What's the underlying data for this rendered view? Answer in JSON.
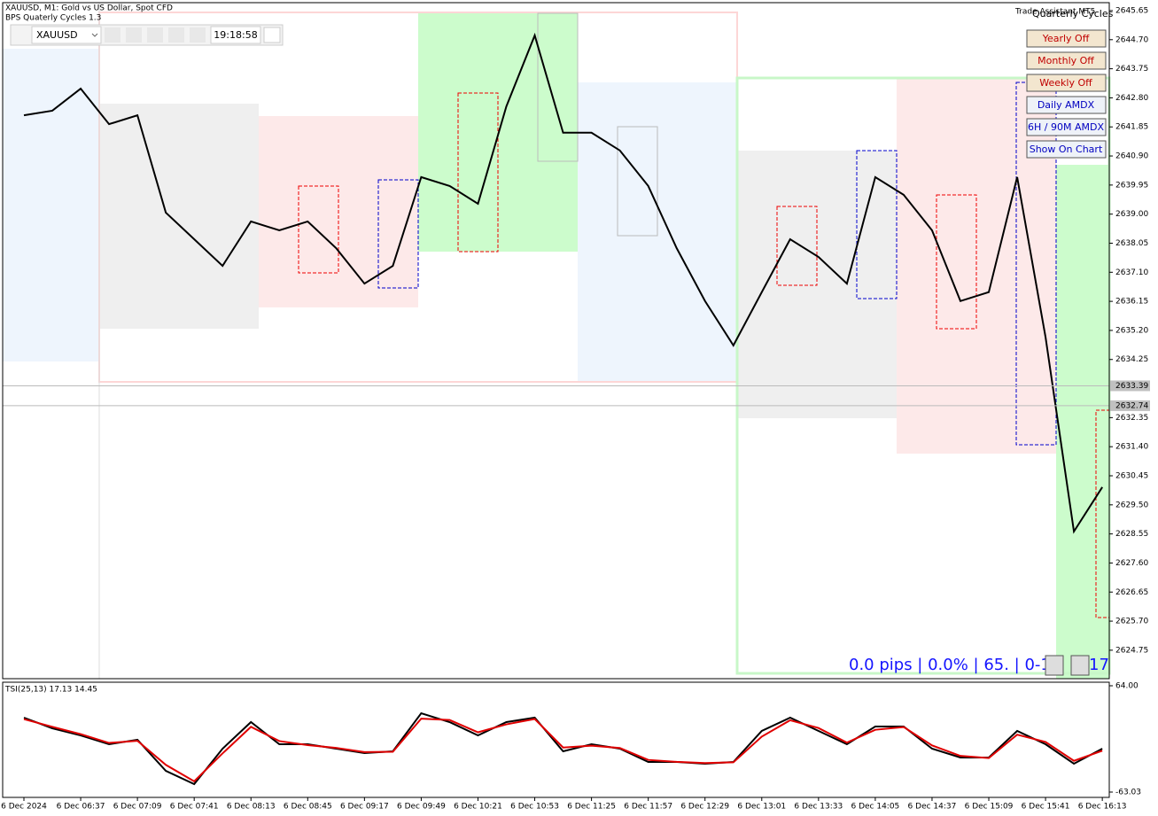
{
  "header": {
    "symbol_line": "XAUUSD, M1:  Gold vs US Dollar, Spot CFD",
    "indicator": "BPS Quaterly Cycles 1.3"
  },
  "toolbar": {
    "symbol": "XAUUSD",
    "time": "19:18:58"
  },
  "panel": {
    "overlay": "Trade Assistant MT5",
    "title": "Quarterly Cycles",
    "buttons": [
      "Yearly Off",
      "Monthly Off",
      "Weekly Off",
      "Daily AMDX",
      "6H / 90M AMDX",
      "Show On Chart"
    ]
  },
  "status": {
    "text": "0.0 pips | 0.0% | 65. | 0-1",
    "tail": "17"
  },
  "sub_label": "TSI(25,13) 17.13 14.45",
  "chart_data": [
    {
      "type": "line",
      "color": "#000000",
      "categories": [
        "6 Dec 2024",
        null,
        "6 Dec 06:37",
        null,
        "6 Dec 07:09",
        null,
        "6 Dec 07:41",
        null,
        "6 Dec 08:13",
        null,
        "6 Dec 08:45",
        null,
        "6 Dec 09:17",
        null,
        "6 Dec 09:49",
        null,
        "6 Dec 10:21",
        null,
        "6 Dec 10:53",
        null,
        "6 Dec 11:25",
        null,
        "6 Dec 11:57",
        null,
        "6 Dec 12:29",
        null,
        "6 Dec 13:01",
        null,
        "6 Dec 13:33",
        null,
        "6 Dec 14:05",
        null,
        "6 Dec 14:37",
        null,
        "6 Dec 15:09",
        null,
        "6 Dec 15:41",
        null,
        "6 Dec 16:13"
      ],
      "values": [
        2642.23,
        2642.38,
        2643.1,
        2641.94,
        2642.23,
        2639.05,
        2638.18,
        2637.31,
        2638.76,
        2638.47,
        2638.76,
        2637.89,
        2636.73,
        2637.31,
        2640.21,
        2639.92,
        2639.34,
        2642.52,
        2644.84,
        2641.66,
        2641.66,
        2641.08,
        2639.92,
        2637.89,
        2636.16,
        2634.71,
        2636.45,
        2638.18,
        2637.6,
        2636.73,
        2640.21,
        2639.63,
        2638.47,
        2636.16,
        2636.45,
        2640.21,
        2634.98,
        2628.63,
        2630.08
      ],
      "price_lines": [
        2633.39,
        2632.74
      ],
      "ylim": [
        2623.82,
        2645.91
      ],
      "yticks": [
        2645.65,
        {
          "value": 2644.7,
          "label": "2644.70"
        },
        2643.75,
        {
          "value": 2642.8,
          "label": "2642.80"
        },
        2641.85,
        {
          "value": 2640.9,
          "label": "2640.90"
        },
        2639.95,
        {
          "value": 2639,
          "label": "2639.00"
        },
        2638.05,
        {
          "value": 2637.1,
          "label": "2637.10"
        },
        2636.15,
        {
          "value": 2635.2,
          "label": "2635.20"
        },
        2634.25,
        2632.35,
        {
          "value": 2631.4,
          "label": "2631.40"
        },
        2630.45,
        {
          "value": 2629.5,
          "label": "2629.50"
        },
        2628.55,
        {
          "value": 2627.6,
          "label": "2627.60"
        },
        2626.65,
        {
          "value": 2625.7,
          "label": "2625.70"
        },
        2624.75
      ]
    },
    {
      "type": "line",
      "series": [
        {
          "color": "#000000",
          "values": [
            25.89,
            13.19,
            4.72,
            -5.87,
            -0.57,
            -37.63,
            -53.5,
            -11.16,
            20.6,
            -5.87,
            -5.87,
            -11.16,
            -16.45,
            -14.34,
            31.18,
            20.6,
            4.72,
            20.6,
            25.89,
            -14.34,
            -5.87,
            -11.16,
            -27.04,
            -27.04,
            -29.16,
            -27.04,
            10.01,
            25.89,
            10.01,
            -5.87,
            15.3,
            15.3,
            -11.16,
            -21.75,
            -21.75,
            10.01,
            -5.87,
            -29.16,
            -11.16
          ]
        },
        {
          "color": "#e00000",
          "values": [
            24.1,
            15.0,
            6.2,
            -4.3,
            -1.8,
            -30.5,
            -50.2,
            -16.8,
            14.9,
            -2.1,
            -6.9,
            -10.2,
            -15.3,
            -14.9,
            24.7,
            23.1,
            8.4,
            17.9,
            24.3,
            -9.8,
            -7.6,
            -10.4,
            -24.6,
            -26.9,
            -28.3,
            -27.5,
            3.2,
            22.8,
            13.5,
            -3.9,
            11.4,
            14.7,
            -7.3,
            -19.8,
            -22.4,
            5.6,
            -3.1,
            -25.7,
            -13.6
          ]
        }
      ],
      "ylim": [
        -63.03,
        64
      ],
      "yticks": [
        {
          "value": 64,
          "label": "64.00"
        },
        -63.03
      ]
    }
  ]
}
